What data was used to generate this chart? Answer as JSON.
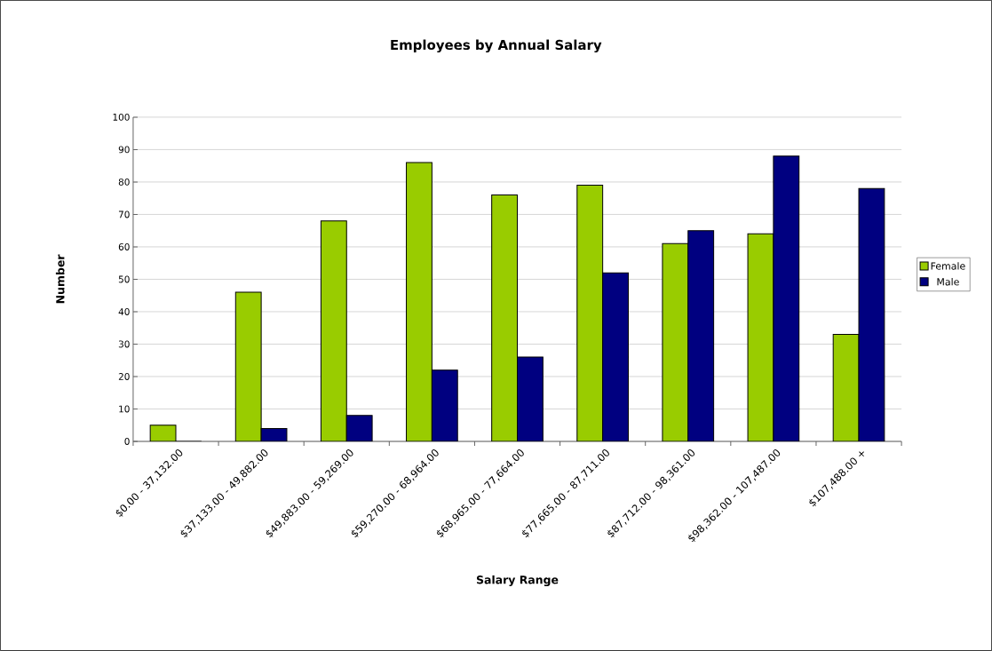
{
  "chart_data": {
    "type": "bar",
    "title": "Employees by Annual Salary",
    "xlabel": "Salary Range",
    "ylabel": "Number",
    "categories": [
      "$0.00 - 37,132.00",
      "$37,133.00 - 49,882.00",
      "$49,883.00 - 59,269.00",
      "$59,270.00 - 68,964.00",
      "$68,965.00 - 77,664.00",
      "$77,665.00 - 87,711.00",
      "$87,712.00 - 98,361.00",
      "$98,362.00 - 107,487.00",
      "$107,488.00 +"
    ],
    "series": [
      {
        "name": "Female",
        "color": "#99cc00",
        "values": [
          5,
          46,
          68,
          86,
          76,
          79,
          61,
          64,
          33
        ]
      },
      {
        "name": "Male",
        "color": "#000080",
        "values": [
          0,
          4,
          8,
          22,
          26,
          52,
          65,
          88,
          78
        ]
      }
    ],
    "ylim": [
      0,
      100
    ],
    "yticks": [
      0,
      10,
      20,
      30,
      40,
      50,
      60,
      70,
      80,
      90,
      100
    ],
    "grid": "y",
    "legend": "right"
  }
}
